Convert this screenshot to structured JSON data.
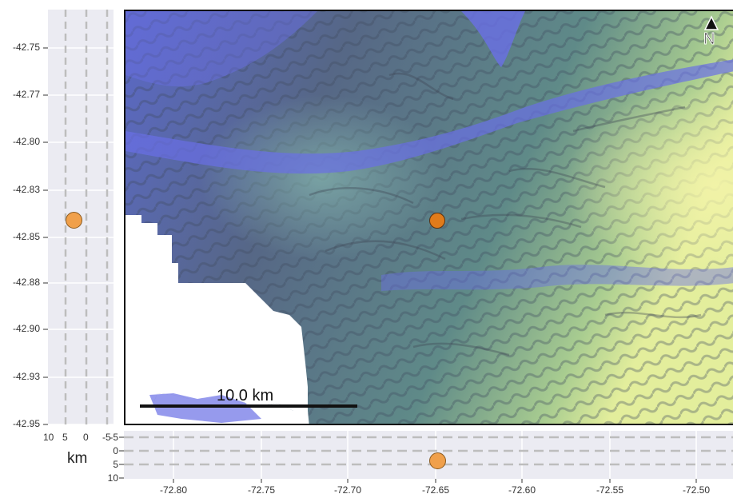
{
  "map": {
    "north_arrow_label": "N",
    "scale_bar_label": "10.0 km",
    "marker_color": "#f0a04b",
    "marker_color_map": "#e07b1a",
    "water_color": "#6a6fe6",
    "land_low_color": "#5e6b8a",
    "land_high_color": "#e8f0a0"
  },
  "left_panel": {
    "y_tick_labels": [
      "-42.75",
      "-42.77",
      "-42.80",
      "-42.83",
      "-42.85",
      "-42.88",
      "-42.90",
      "-42.93",
      "-42.95"
    ],
    "x_tick_labels": [
      "10",
      "5",
      "0",
      "-5"
    ],
    "unit_label": "km"
  },
  "bottom_panel": {
    "y_tick_labels": [
      "-5",
      "0",
      "5",
      "10"
    ],
    "x_tick_labels": [
      "-72.80",
      "-72.75",
      "-72.70",
      "-72.65",
      "-72.60",
      "-72.55",
      "-72.50"
    ]
  },
  "chart_data": {
    "type": "scatter",
    "title": "",
    "xlabel": "",
    "ylabel": "",
    "xlim": [
      -72.83,
      -72.48
    ],
    "ylim": [
      -42.95,
      -42.74
    ],
    "points": [
      {
        "x": -72.646,
        "y": -42.843
      }
    ],
    "grid": true
  }
}
